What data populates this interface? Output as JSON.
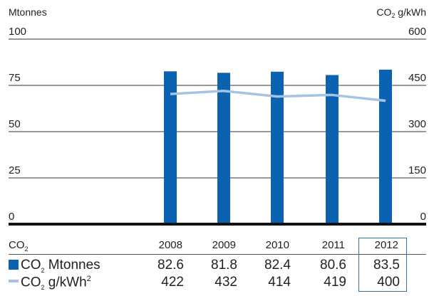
{
  "chart_data": {
    "type": "bar",
    "categories": [
      "2008",
      "2009",
      "2010",
      "2011",
      "2012"
    ],
    "series": [
      {
        "name": "CO2 Mtonnes",
        "type": "bar",
        "axis": "left",
        "values": [
          82.6,
          81.8,
          82.4,
          80.6,
          83.5
        ],
        "color": "#0b62b0"
      },
      {
        "name": "CO2 g/kWh",
        "type": "line",
        "axis": "right",
        "values": [
          422,
          432,
          414,
          419,
          400
        ],
        "color": "#a6c3e3"
      }
    ],
    "ylabel_left": "Mtonnes",
    "ylabel_right": "CO2 g/kWh",
    "ylim_left": [
      0,
      100
    ],
    "ylim_right": [
      0,
      600
    ],
    "yticks_left": [
      100,
      75,
      50,
      25,
      0
    ],
    "yticks_right": [
      600,
      450,
      300,
      150,
      0
    ],
    "highlight_category": "2012",
    "grid": "horizontal"
  },
  "labels": {
    "ylabel_left": "Mtonnes",
    "ylabel_right_main": "CO",
    "ylabel_right_sub": "2",
    "ylabel_right_rest": " g/kWh"
  },
  "table": {
    "header_main": "CO",
    "header_sub": "2",
    "years": [
      "2008",
      "2009",
      "2010",
      "2011",
      "2012"
    ],
    "rows": [
      {
        "label_main": "CO",
        "label_sub": "2",
        "label_rest": " Mtonnes",
        "label_sup": "",
        "values": [
          "82.6",
          "81.8",
          "82.4",
          "80.6",
          "83.5"
        ]
      },
      {
        "label_main": "CO",
        "label_sub": "2",
        "label_rest": " g/kWh",
        "label_sup": "2",
        "values": [
          "422",
          "432",
          "414",
          "419",
          "400"
        ]
      }
    ]
  }
}
